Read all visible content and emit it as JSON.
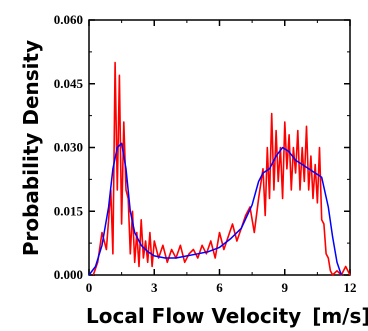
{
  "chart_data": {
    "type": "line",
    "title": "",
    "xlabel": "Local Flow Velocity",
    "xunit": "[m/s]",
    "ylabel": "Probability Density",
    "xlim": [
      0,
      12
    ],
    "ylim": [
      0,
      0.06
    ],
    "xticks": [
      0,
      3,
      6,
      9,
      12
    ],
    "xtick_labels": [
      "0",
      "3",
      "6",
      "9",
      "12"
    ],
    "yticks": [
      0,
      0.015,
      0.03,
      0.045,
      0.06
    ],
    "ytick_labels": [
      "0.000",
      "0.015",
      "0.030",
      "0.045",
      "0.060"
    ],
    "grid": false,
    "legend": false,
    "series": [
      {
        "color": "#ff0000",
        "x": [
          0.2,
          0.4,
          0.6,
          0.8,
          1.0,
          1.1,
          1.2,
          1.3,
          1.4,
          1.5,
          1.6,
          1.7,
          1.8,
          1.9,
          2.0,
          2.1,
          2.2,
          2.3,
          2.4,
          2.5,
          2.6,
          2.7,
          2.8,
          2.9,
          3.0,
          3.2,
          3.4,
          3.6,
          3.8,
          4.0,
          4.2,
          4.4,
          4.6,
          4.8,
          5.0,
          5.2,
          5.4,
          5.6,
          5.8,
          6.0,
          6.2,
          6.4,
          6.6,
          6.8,
          7.0,
          7.2,
          7.4,
          7.6,
          7.8,
          8.0,
          8.1,
          8.2,
          8.3,
          8.4,
          8.5,
          8.6,
          8.7,
          8.8,
          8.9,
          9.0,
          9.1,
          9.2,
          9.3,
          9.4,
          9.5,
          9.6,
          9.7,
          9.8,
          9.9,
          10.0,
          10.1,
          10.2,
          10.3,
          10.4,
          10.5,
          10.6,
          10.7,
          10.8,
          10.9,
          11.0,
          11.1,
          11.2,
          11.4,
          11.6,
          11.8,
          12.0
        ],
        "y": [
          0.0,
          0.003,
          0.01,
          0.006,
          0.02,
          0.005,
          0.05,
          0.02,
          0.047,
          0.012,
          0.036,
          0.02,
          0.018,
          0.005,
          0.015,
          0.003,
          0.01,
          0.002,
          0.013,
          0.004,
          0.008,
          0.003,
          0.01,
          0.002,
          0.008,
          0.004,
          0.007,
          0.003,
          0.006,
          0.004,
          0.007,
          0.003,
          0.005,
          0.006,
          0.004,
          0.007,
          0.005,
          0.008,
          0.004,
          0.01,
          0.006,
          0.009,
          0.012,
          0.008,
          0.011,
          0.014,
          0.016,
          0.01,
          0.018,
          0.025,
          0.014,
          0.03,
          0.018,
          0.038,
          0.02,
          0.034,
          0.022,
          0.03,
          0.018,
          0.036,
          0.025,
          0.033,
          0.02,
          0.03,
          0.024,
          0.034,
          0.02,
          0.03,
          0.022,
          0.035,
          0.02,
          0.028,
          0.018,
          0.026,
          0.017,
          0.03,
          0.013,
          0.012,
          0.005,
          0.004,
          0.001,
          0.0,
          0.001,
          0.0,
          0.002,
          0.0
        ]
      },
      {
        "color": "#0000ff",
        "x": [
          0.0,
          0.3,
          0.6,
          0.9,
          1.1,
          1.3,
          1.5,
          1.7,
          1.9,
          2.1,
          2.4,
          2.7,
          3.0,
          3.5,
          4.0,
          4.5,
          5.0,
          5.5,
          6.0,
          6.5,
          7.0,
          7.5,
          7.8,
          8.0,
          8.3,
          8.6,
          8.9,
          9.2,
          9.5,
          9.8,
          10.1,
          10.4,
          10.7,
          11.0,
          11.2,
          11.4,
          11.6
        ],
        "y": [
          0.0,
          0.002,
          0.007,
          0.016,
          0.025,
          0.03,
          0.031,
          0.025,
          0.015,
          0.01,
          0.007,
          0.0055,
          0.0045,
          0.004,
          0.004,
          0.0045,
          0.005,
          0.0055,
          0.0065,
          0.0085,
          0.011,
          0.0165,
          0.022,
          0.024,
          0.025,
          0.028,
          0.03,
          0.029,
          0.027,
          0.026,
          0.025,
          0.024,
          0.023,
          0.016,
          0.009,
          0.003,
          0.0
        ]
      }
    ]
  }
}
